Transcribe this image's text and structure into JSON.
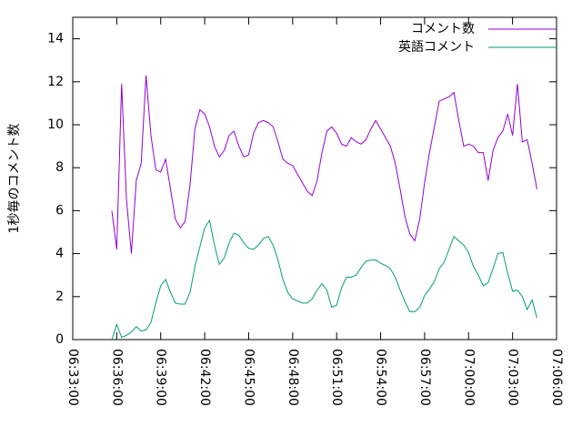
{
  "chart_data": {
    "type": "line",
    "ylabel": "1秒毎のコメント数",
    "x": [
      "06:35:40",
      "06:36:00",
      "06:36:20",
      "06:36:40",
      "06:37:00",
      "06:37:20",
      "06:37:40",
      "06:38:00",
      "06:38:20",
      "06:38:40",
      "06:39:00",
      "06:39:20",
      "06:39:40",
      "06:40:00",
      "06:40:20",
      "06:40:40",
      "06:41:00",
      "06:41:20",
      "06:41:40",
      "06:42:00",
      "06:42:20",
      "06:42:40",
      "06:43:00",
      "06:43:20",
      "06:43:40",
      "06:44:00",
      "06:44:20",
      "06:44:40",
      "06:45:00",
      "06:45:20",
      "06:45:40",
      "06:46:00",
      "06:46:20",
      "06:46:40",
      "06:47:00",
      "06:47:20",
      "06:47:40",
      "06:48:00",
      "06:48:20",
      "06:48:40",
      "06:49:00",
      "06:49:20",
      "06:49:40",
      "06:50:00",
      "06:50:20",
      "06:50:40",
      "06:51:00",
      "06:51:20",
      "06:51:40",
      "06:52:00",
      "06:52:20",
      "06:52:40",
      "06:53:00",
      "06:53:20",
      "06:53:40",
      "06:54:00",
      "06:54:20",
      "06:54:40",
      "06:55:00",
      "06:55:20",
      "06:55:40",
      "06:56:00",
      "06:56:20",
      "06:56:40",
      "06:57:00",
      "06:57:20",
      "06:57:40",
      "06:58:00",
      "06:58:20",
      "06:58:40",
      "06:59:00",
      "06:59:20",
      "06:59:40",
      "07:00:00",
      "07:00:20",
      "07:00:40",
      "07:01:00",
      "07:01:20",
      "07:01:40",
      "07:02:00",
      "07:02:20",
      "07:02:40",
      "07:03:00",
      "07:03:20",
      "07:03:40",
      "07:04:00",
      "07:04:20",
      "07:04:40"
    ],
    "series": [
      {
        "name": "コメント数",
        "color": "#9400d3",
        "values": [
          6.0,
          4.2,
          11.9,
          6.5,
          4.0,
          7.4,
          8.2,
          12.3,
          9.5,
          7.9,
          7.8,
          8.4,
          7.0,
          5.6,
          5.2,
          5.5,
          7.2,
          9.8,
          10.7,
          10.5,
          9.9,
          9.0,
          8.5,
          8.8,
          9.5,
          9.7,
          9.0,
          8.5,
          8.6,
          9.6,
          10.1,
          10.2,
          10.1,
          9.9,
          9.2,
          8.4,
          8.2,
          8.1,
          7.7,
          7.3,
          6.9,
          6.7,
          7.4,
          8.7,
          9.7,
          9.9,
          9.6,
          9.1,
          9.0,
          9.4,
          9.2,
          9.1,
          9.3,
          9.8,
          10.2,
          9.8,
          9.4,
          9.0,
          8.2,
          7.0,
          5.7,
          4.9,
          4.6,
          5.6,
          7.3,
          8.7,
          9.9,
          11.1,
          11.2,
          11.3,
          11.5,
          10.2,
          9.0,
          9.1,
          9.0,
          8.7,
          8.7,
          7.4,
          8.8,
          9.4,
          9.7,
          10.5,
          9.5,
          11.9,
          9.2,
          9.3,
          8.2,
          7.0
        ]
      },
      {
        "name": "英語コメント",
        "color": "#009e73",
        "values": [
          0.0,
          0.7,
          0.1,
          0.2,
          0.35,
          0.6,
          0.4,
          0.45,
          0.8,
          1.7,
          2.5,
          2.8,
          2.2,
          1.7,
          1.65,
          1.65,
          2.2,
          3.4,
          4.3,
          5.2,
          5.55,
          4.4,
          3.5,
          3.8,
          4.5,
          4.95,
          4.85,
          4.5,
          4.25,
          4.2,
          4.4,
          4.7,
          4.8,
          4.4,
          3.7,
          2.8,
          2.2,
          1.9,
          1.8,
          1.7,
          1.7,
          1.9,
          2.3,
          2.6,
          2.3,
          1.5,
          1.6,
          2.4,
          2.9,
          2.9,
          3.0,
          3.35,
          3.65,
          3.7,
          3.7,
          3.55,
          3.45,
          3.3,
          2.9,
          2.3,
          1.75,
          1.3,
          1.3,
          1.5,
          2.05,
          2.35,
          2.7,
          3.3,
          3.6,
          4.2,
          4.8,
          4.6,
          4.4,
          4.05,
          3.4,
          3.0,
          2.5,
          2.65,
          3.3,
          4.0,
          4.05,
          3.1,
          2.25,
          2.3,
          2.0,
          1.4,
          1.85,
          1.0
        ]
      }
    ],
    "xlim": [
      "06:33:00",
      "07:06:00"
    ],
    "xticks": [
      "06:33:00",
      "06:36:00",
      "06:39:00",
      "06:42:00",
      "06:45:00",
      "06:48:00",
      "06:51:00",
      "06:54:00",
      "06:57:00",
      "07:00:00",
      "07:03:00",
      "07:06:00"
    ],
    "ylim": [
      0,
      15
    ],
    "yticks": [
      0,
      2,
      4,
      6,
      8,
      10,
      12,
      14
    ],
    "legend": "top-right"
  }
}
